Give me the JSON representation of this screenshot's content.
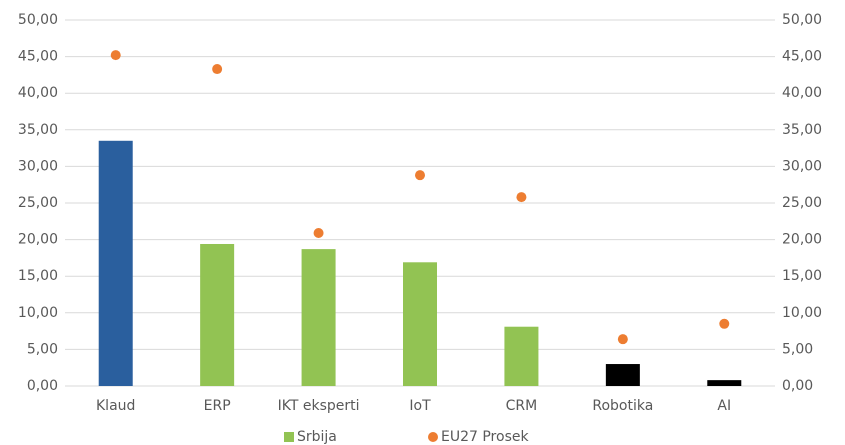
{
  "chart_data": {
    "type": "bar",
    "categories": [
      "Klaud",
      "ERP",
      "IKT eksperti",
      "IoT",
      "CRM",
      "Robotika",
      "AI"
    ],
    "series": [
      {
        "name": "Srbija",
        "type": "bar",
        "color": "#92c353",
        "colors": [
          "#2a5f9e",
          "#92c353",
          "#92c353",
          "#92c353",
          "#92c353",
          "#000000",
          "#000000"
        ],
        "values": [
          33.5,
          19.4,
          18.7,
          16.9,
          8.1,
          3.0,
          0.8
        ]
      },
      {
        "name": "EU27 Prosek",
        "type": "scatter",
        "axis": "y2",
        "color": "#ed7d31",
        "values": [
          45.2,
          43.3,
          20.9,
          28.8,
          25.8,
          6.4,
          8.5
        ]
      }
    ],
    "ylim": [
      0,
      50
    ],
    "yticks": [
      {
        "value": 0,
        "label": "0,00"
      },
      {
        "value": 5,
        "label": "5,00"
      },
      {
        "value": 10,
        "label": "10,00"
      },
      {
        "value": 15,
        "label": "15,00"
      },
      {
        "value": 20,
        "label": "20,00"
      },
      {
        "value": 25,
        "label": "25,00"
      },
      {
        "value": 30,
        "label": "30,00"
      },
      {
        "value": 35,
        "label": "35,00"
      },
      {
        "value": 40,
        "label": "40,00"
      },
      {
        "value": 45,
        "label": "45,00"
      },
      {
        "value": 50,
        "label": "50,00"
      }
    ],
    "y2lim": [
      0,
      50
    ],
    "y2ticks": [
      {
        "value": 0,
        "label": "0,00"
      },
      {
        "value": 5,
        "label": "5,00"
      },
      {
        "value": 10,
        "label": "10,00"
      },
      {
        "value": 15,
        "label": "15,00"
      },
      {
        "value": 20,
        "label": "20,00"
      },
      {
        "value": 25,
        "label": "25,00"
      },
      {
        "value": 30,
        "label": "30,00"
      },
      {
        "value": 35,
        "label": "35,00"
      },
      {
        "value": 40,
        "label": "40,00"
      },
      {
        "value": 45,
        "label": "45,00"
      },
      {
        "value": 50,
        "label": "50,00"
      }
    ],
    "grid": true,
    "legend": "bottom"
  }
}
